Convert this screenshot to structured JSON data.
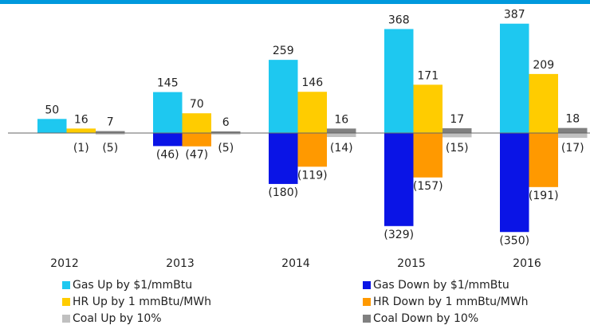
{
  "chart_data": {
    "type": "bar",
    "categories": [
      "2012",
      "2013",
      "2014",
      "2015",
      "2016"
    ],
    "series": [
      {
        "name": "Gas Up by $1/mmBtu",
        "color": "#1ec8f0",
        "values": [
          50,
          145,
          259,
          368,
          387
        ],
        "value_labels": [
          "50",
          "145",
          "259",
          "368",
          "387"
        ]
      },
      {
        "name": "Gas Down by $1/mmBtu",
        "color": "#0a14e6",
        "values": [
          0,
          -46,
          -180,
          -329,
          -350
        ],
        "value_labels": [
          null,
          "(46)",
          "(180)",
          "(329)",
          "(350)"
        ]
      },
      {
        "name": "HR Up by 1 mmBtu/MWh",
        "color": "#ffcc00",
        "values": [
          16,
          70,
          146,
          171,
          209
        ],
        "value_labels": [
          "16",
          "70",
          "146",
          "171",
          "209"
        ]
      },
      {
        "name": "HR Down by 1 mmBtu/MWh",
        "color": "#ff9900",
        "values": [
          -1,
          -47,
          -119,
          -157,
          -191
        ],
        "value_labels": [
          "(1)",
          "(47)",
          "(119)",
          "(157)",
          "(191)"
        ]
      },
      {
        "name": "Coal Up by 10%",
        "color": "#c0c0c0",
        "values": [
          -5,
          -5,
          -14,
          -15,
          -17
        ],
        "value_labels": [
          "(5)",
          "(5)",
          "(14)",
          "(15)",
          "(17)"
        ]
      },
      {
        "name": "Coal Down by 10%",
        "color": "#808080",
        "values": [
          7,
          6,
          16,
          17,
          18
        ],
        "value_labels": [
          "7",
          "6",
          "16",
          "17",
          "18"
        ]
      }
    ],
    "ylim": [
      -400,
      420
    ],
    "grid": false
  }
}
